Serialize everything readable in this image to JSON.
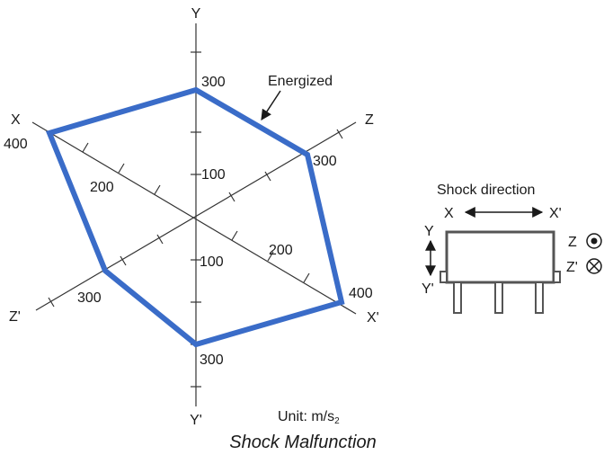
{
  "title": "Shock Malfunction",
  "unit": {
    "label": "Unit: m/s",
    "subscript": "2"
  },
  "axes": {
    "y": "Y",
    "y_neg": "Y'",
    "x": "X",
    "x_neg": "X'",
    "z": "Z",
    "z_neg": "Z'"
  },
  "annotations": {
    "energized": "Energized",
    "x_value": "400",
    "x_neg_value": "400",
    "y_value": "300",
    "y_neg_value": "300",
    "z_value": "300",
    "z_neg_value": "300",
    "y_tick_100": "100",
    "y_neg_tick_100": "100",
    "x_tick_200": "200",
    "x_neg_tick_200": "200"
  },
  "series_color": "#3a6cc8",
  "device": {
    "caption": "Shock direction",
    "x_label": "X",
    "x_neg_label": "X'",
    "y_label": "Y",
    "y_neg_label": "Y'",
    "z_label": "Z",
    "z_neg_label": "Z'"
  },
  "chart_data": {
    "type": "radar",
    "axes": [
      "Y",
      "Z",
      "X'",
      "Y'",
      "Z'",
      "X"
    ],
    "series": [
      {
        "name": "Energized",
        "values": [
          300,
          300,
          400,
          300,
          300,
          400
        ]
      }
    ]
  }
}
